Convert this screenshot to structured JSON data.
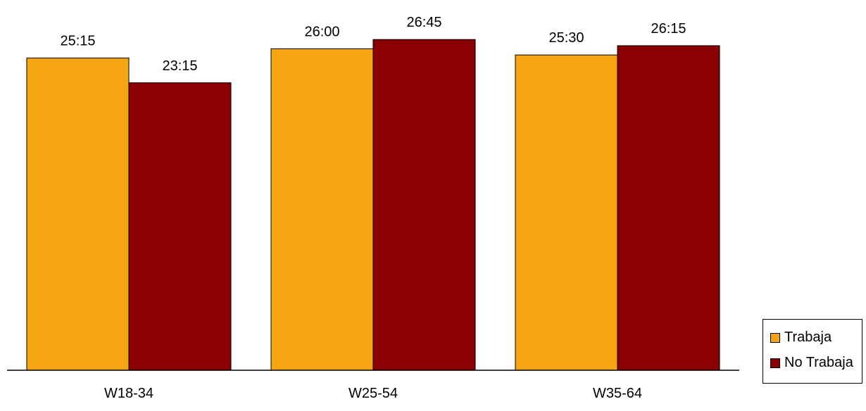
{
  "chart_data": {
    "type": "bar",
    "title": "",
    "xlabel": "",
    "ylabel": "",
    "categories": [
      "W18-34",
      "W25-54",
      "W35-64"
    ],
    "series": [
      {
        "name": "Trabaja",
        "color": "#F5A511",
        "values": [
          25.25,
          26.0,
          25.5
        ],
        "labels": [
          "25:15",
          "26:00",
          "25:30"
        ]
      },
      {
        "name": "No Trabaja",
        "color": "#8B0000",
        "values": [
          23.25,
          26.75,
          26.25
        ],
        "labels": [
          "23:15",
          "26:45",
          "26:15"
        ]
      }
    ],
    "ylim": [
      0,
      30
    ],
    "grid": false,
    "legend_position": "bottom-right"
  }
}
